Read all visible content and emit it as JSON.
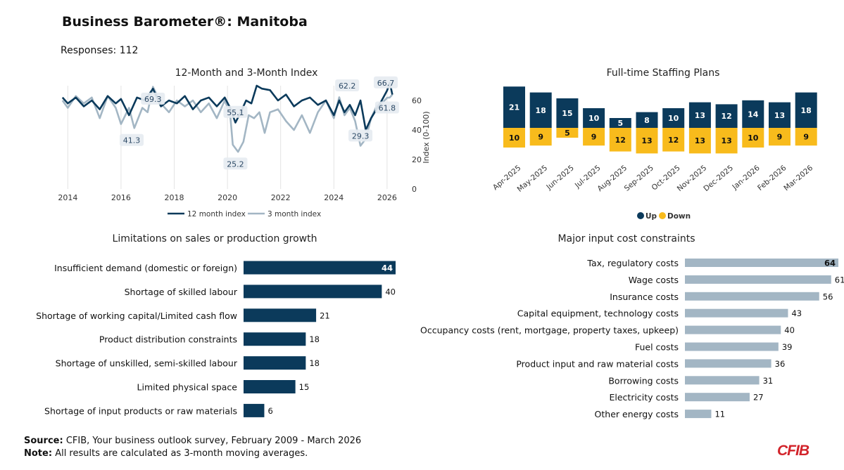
{
  "header": {
    "title": "Business Barometer®: Manitoba",
    "responses_label": "Responses:",
    "responses_value": "112"
  },
  "footer": {
    "source_label": "Source:",
    "source_text": "CFIB, Your business outlook survey, February 2009 - March 2026",
    "note_label": "Note:",
    "note_text": "All results are calculated as 3-month moving averages.",
    "logo": "CFIB"
  },
  "colors": {
    "navy": "#0b3a5b",
    "yellow": "#f8bb1c",
    "gray": "#a3b6c4"
  },
  "chart_data": [
    {
      "id": "index",
      "type": "line",
      "title": "12-Month and 3-Month Index",
      "ylabel": "Index (0-100)",
      "ylim": [
        0,
        70
      ],
      "yticks": [
        0,
        20,
        40,
        60
      ],
      "xlim": [
        2013.7,
        2026.4
      ],
      "xticks": [
        2014,
        2016,
        2018,
        2020,
        2022,
        2024,
        2026
      ],
      "series": [
        {
          "name": "12 month index",
          "color": "#0b3a5b",
          "x": [
            2013.8,
            2014.0,
            2014.3,
            2014.6,
            2014.9,
            2015.2,
            2015.5,
            2015.8,
            2016.0,
            2016.3,
            2016.6,
            2016.9,
            2017.2,
            2017.5,
            2017.8,
            2018.1,
            2018.4,
            2018.7,
            2019.0,
            2019.3,
            2019.6,
            2019.9,
            2020.1,
            2020.3,
            2020.5,
            2020.7,
            2020.9,
            2021.1,
            2021.3,
            2021.6,
            2021.9,
            2022.2,
            2022.5,
            2022.8,
            2023.1,
            2023.4,
            2023.7,
            2024.0,
            2024.2,
            2024.4,
            2024.6,
            2024.8,
            2025.0,
            2025.2,
            2025.4,
            2025.6,
            2025.8,
            2026.0,
            2026.1,
            2026.2
          ],
          "values": [
            62,
            58,
            62,
            56,
            60,
            54,
            63,
            58,
            61,
            50,
            62,
            60,
            68,
            56,
            60,
            58,
            63,
            54,
            60,
            62,
            56,
            62,
            55,
            45,
            52,
            60,
            58,
            70,
            68,
            67,
            60,
            64,
            56,
            60,
            62,
            57,
            60,
            50,
            60,
            52,
            57,
            50,
            60,
            40,
            48,
            54,
            60,
            66.7,
            72,
            64
          ]
        },
        {
          "name": "3 month index",
          "color": "#a3b6c4",
          "x": [
            2013.8,
            2014.0,
            2014.3,
            2014.6,
            2014.9,
            2015.2,
            2015.5,
            2015.8,
            2016.0,
            2016.3,
            2016.5,
            2016.8,
            2017.0,
            2017.2,
            2017.5,
            2017.8,
            2018.1,
            2018.4,
            2018.7,
            2019.0,
            2019.3,
            2019.6,
            2019.9,
            2020.1,
            2020.2,
            2020.4,
            2020.6,
            2020.8,
            2021.0,
            2021.2,
            2021.4,
            2021.6,
            2021.9,
            2022.2,
            2022.5,
            2022.8,
            2023.1,
            2023.4,
            2023.7,
            2024.0,
            2024.2,
            2024.4,
            2024.6,
            2024.8,
            2025.0,
            2025.2,
            2025.4,
            2025.6,
            2025.8,
            2026.0,
            2026.1,
            2026.2
          ],
          "values": [
            60,
            55,
            63,
            58,
            62,
            48,
            63,
            55,
            44,
            55,
            41.3,
            55,
            52,
            69.3,
            58,
            52,
            60,
            56,
            60,
            52,
            58,
            48,
            60,
            51,
            30,
            25.2,
            32,
            50,
            48,
            52,
            38,
            52,
            54,
            46,
            40,
            50,
            38,
            52,
            60,
            48,
            62.2,
            50,
            55,
            46,
            29.3,
            34,
            48,
            56,
            58,
            61.8,
            62,
            64
          ]
        }
      ],
      "annotations": [
        {
          "label": "69.3",
          "x": 2017.2,
          "y": 61
        },
        {
          "label": "41.3",
          "x": 2016.4,
          "y": 33
        },
        {
          "label": "55.1",
          "x": 2020.3,
          "y": 52
        },
        {
          "label": "25.2",
          "x": 2020.3,
          "y": 17
        },
        {
          "label": "62.2",
          "x": 2024.5,
          "y": 70
        },
        {
          "label": "29.3",
          "x": 2025.0,
          "y": 36
        },
        {
          "label": "66.7",
          "x": 2025.95,
          "y": 72
        },
        {
          "label": "61.8",
          "x": 2026.0,
          "y": 55
        }
      ]
    },
    {
      "id": "staffing",
      "type": "bar",
      "title": "Full-time Staffing Plans",
      "categories": [
        "Apr-2025",
        "May-2025",
        "Jun-2025",
        "Jul-2025",
        "Aug-2025",
        "Sep-2025",
        "Oct-2025",
        "Nov-2025",
        "Dec-2025",
        "Jan-2026",
        "Feb-2026",
        "Mar-2026"
      ],
      "series": [
        {
          "name": "Up",
          "color": "#0b3a5b",
          "values": [
            21,
            18,
            15,
            10,
            5,
            8,
            10,
            13,
            12,
            14,
            13,
            18
          ]
        },
        {
          "name": "Down",
          "color": "#f8bb1c",
          "values": [
            10,
            9,
            5,
            9,
            12,
            13,
            12,
            13,
            13,
            10,
            9,
            9
          ]
        }
      ],
      "legend": "bottom"
    },
    {
      "id": "limitations",
      "type": "bar",
      "orientation": "horizontal",
      "title": "Limitations on sales or production growth",
      "categories": [
        "Insufficient demand (domestic or foreign)",
        "Shortage of skilled labour",
        "Shortage of working capital/Limited cash flow",
        "Product distribution constraints",
        "Shortage of unskilled, semi-skilled labour",
        "Limited physical space",
        "Shortage of input products or raw materials"
      ],
      "values": [
        44,
        40,
        21,
        18,
        18,
        15,
        6
      ],
      "color": "#0b3a5b",
      "xlim": [
        0,
        44
      ]
    },
    {
      "id": "inputcosts",
      "type": "bar",
      "orientation": "horizontal",
      "title": "Major input cost constraints",
      "categories": [
        "Tax, regulatory costs",
        "Wage costs",
        "Insurance costs",
        "Capital equipment, technology costs",
        "Occupancy costs (rent, mortgage, property taxes, upkeep)",
        "Fuel costs",
        "Product input and raw material costs",
        "Borrowing costs",
        "Electricity costs",
        "Other energy costs"
      ],
      "values": [
        64,
        61,
        56,
        43,
        40,
        39,
        36,
        31,
        27,
        11
      ],
      "color": "#a3b6c4",
      "xlim": [
        0,
        64
      ]
    }
  ]
}
